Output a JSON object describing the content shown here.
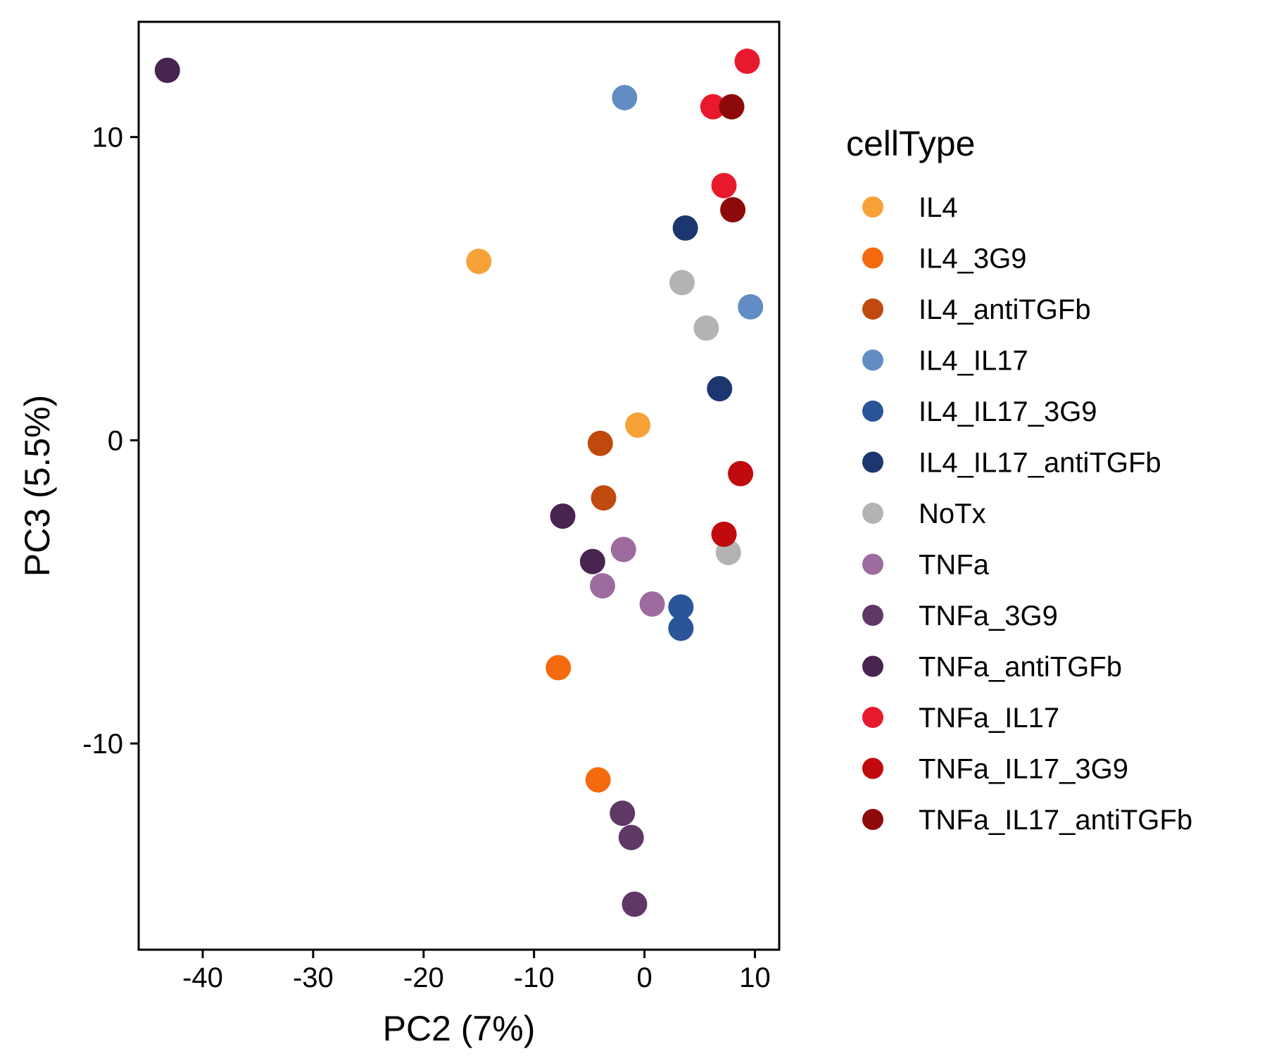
{
  "chart_data": {
    "type": "scatter",
    "xlabel": "PC2 (7%)",
    "ylabel": "PC3 (5.5%)",
    "xlim": [
      -45.8,
      12.2
    ],
    "ylim": [
      -16.8,
      13.8
    ],
    "xticks": [
      -40,
      -30,
      -20,
      -10,
      0,
      10
    ],
    "yticks": [
      -10,
      0,
      10
    ],
    "grid": false,
    "legend": {
      "title": "cellType",
      "position": "right"
    },
    "series": [
      {
        "name": "IL4",
        "color": "#F7A238",
        "points": [
          [
            -15.0,
            5.9
          ],
          [
            -0.6,
            0.5
          ]
        ]
      },
      {
        "name": "IL4_3G9",
        "color": "#F46A0E",
        "points": [
          [
            -7.8,
            -7.5
          ],
          [
            -4.2,
            -11.2
          ]
        ]
      },
      {
        "name": "IL4_antiTGFb",
        "color": "#C04A0E",
        "points": [
          [
            -4.0,
            -0.1
          ],
          [
            -3.7,
            -1.9
          ]
        ]
      },
      {
        "name": "IL4_IL17",
        "color": "#628CC4",
        "points": [
          [
            -1.8,
            11.3
          ],
          [
            9.6,
            4.4
          ]
        ]
      },
      {
        "name": "IL4_IL17_3G9",
        "color": "#2A5599",
        "points": [
          [
            3.3,
            -5.5
          ],
          [
            3.3,
            -6.2
          ]
        ]
      },
      {
        "name": "IL4_IL17_antiTGFb",
        "color": "#1C3670",
        "points": [
          [
            3.7,
            7.0
          ],
          [
            6.8,
            1.7
          ]
        ]
      },
      {
        "name": "NoTx",
        "color": "#B3B3B3",
        "points": [
          [
            3.4,
            5.2
          ],
          [
            5.6,
            3.7
          ],
          [
            7.6,
            -3.7
          ]
        ]
      },
      {
        "name": "TNFa",
        "color": "#9E6B9E",
        "points": [
          [
            -1.9,
            -3.6
          ],
          [
            -3.8,
            -4.8
          ],
          [
            0.7,
            -5.4
          ]
        ]
      },
      {
        "name": "TNFa_3G9",
        "color": "#5F3866",
        "points": [
          [
            -2.0,
            -12.3
          ],
          [
            -1.2,
            -13.1
          ],
          [
            -0.9,
            -15.3
          ]
        ]
      },
      {
        "name": "TNFa_antiTGFb",
        "color": "#482451",
        "points": [
          [
            -43.2,
            12.2
          ],
          [
            -7.4,
            -2.5
          ],
          [
            -4.7,
            -4.0
          ]
        ]
      },
      {
        "name": "TNFa_IL17",
        "color": "#E8192C",
        "points": [
          [
            9.3,
            12.5
          ],
          [
            6.2,
            11.0
          ],
          [
            7.2,
            8.4
          ]
        ]
      },
      {
        "name": "TNFa_IL17_3G9",
        "color": "#C00A0E",
        "points": [
          [
            8.7,
            -1.1
          ],
          [
            7.2,
            -3.1
          ]
        ]
      },
      {
        "name": "TNFa_IL17_antiTGFb",
        "color": "#8E0A0A",
        "points": [
          [
            7.9,
            11.0
          ],
          [
            8.0,
            7.6
          ]
        ]
      }
    ]
  }
}
